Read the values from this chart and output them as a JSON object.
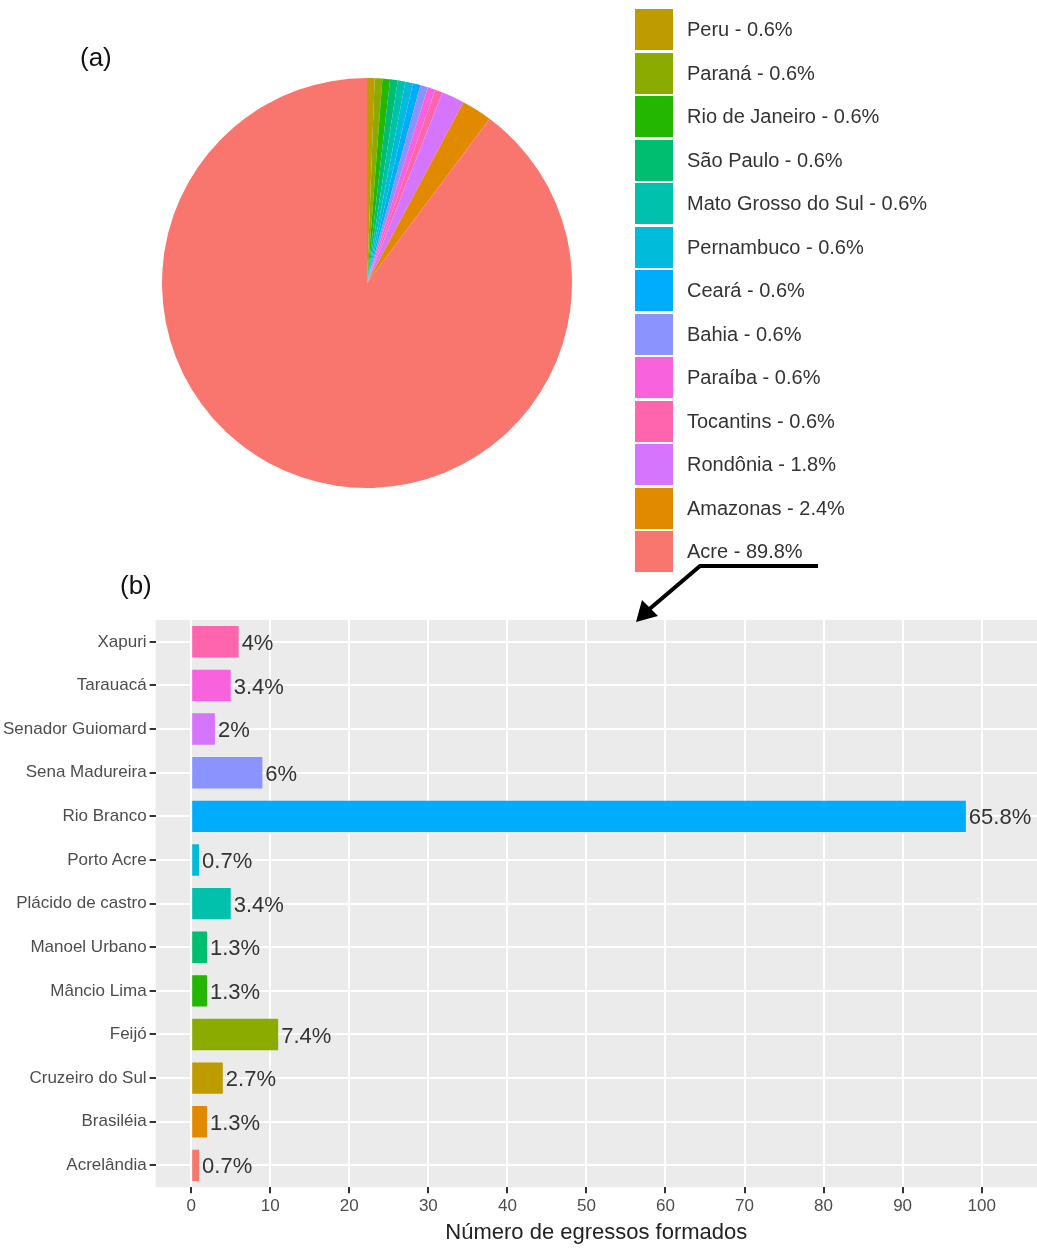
{
  "chart_data": [
    {
      "type": "pie",
      "title": "(a)",
      "legend": "right",
      "categories": [
        "Peru - 0.6%",
        "Paraná - 0.6%",
        "Rio de Janeiro - 0.6%",
        "São Paulo - 0.6%",
        "Mato Grosso do Sul - 0.6%",
        "Pernambuco - 0.6%",
        "Ceará - 0.6%",
        "Bahia - 0.6%",
        "Paraíba - 0.6%",
        "Tocantins - 0.6%",
        "Rondônia - 1.8%",
        "Amazonas - 2.4%",
        "Acre - 89.8%"
      ],
      "values": [
        0.6,
        0.6,
        0.6,
        0.6,
        0.6,
        0.6,
        0.6,
        0.6,
        0.6,
        0.6,
        1.8,
        2.4,
        89.8
      ],
      "colors": [
        "#be9c00",
        "#8cab00",
        "#24b700",
        "#00be70",
        "#00c1ab",
        "#00bbda",
        "#00acfc",
        "#8b93ff",
        "#f962dd",
        "#ff65ac",
        "#d575fe",
        "#e18a00",
        "#f8766d"
      ]
    },
    {
      "type": "bar",
      "title": "(b)",
      "orientation": "horizontal",
      "xlabel": "Número de egressos formados",
      "grid": true,
      "categories": [
        "Xapuri",
        "Tarauacá",
        "Senador Guiomard",
        "Sena Madureira",
        "Rio Branco",
        "Porto Acre",
        "Plácido de castro",
        "Manoel Urbano",
        "Mâncio Lima",
        "Feijó",
        "Cruzeiro do Sul",
        "Brasiléia",
        "Acrelândia"
      ],
      "values": [
        6,
        5,
        3,
        9,
        98,
        1,
        5,
        2,
        2,
        11,
        4,
        2,
        1
      ],
      "annotations": [
        {
          "text": "4%",
          "x": 6,
          "y": "Xapuri"
        },
        {
          "text": "3.4%",
          "x": 5,
          "y": "Tarauacá"
        },
        {
          "text": "2%",
          "x": 3,
          "y": "Senador Guiomard"
        },
        {
          "text": "6%",
          "x": 9,
          "y": "Sena Madureira"
        },
        {
          "text": "65.8%",
          "x": 98,
          "y": "Rio Branco"
        },
        {
          "text": "0.7%",
          "x": 1,
          "y": "Porto Acre"
        },
        {
          "text": "3.4%",
          "x": 5,
          "y": "Plácido de castro"
        },
        {
          "text": "1.3%",
          "x": 2,
          "y": "Manoel Urbano"
        },
        {
          "text": "1.3%",
          "x": 2,
          "y": "Mâncio Lima"
        },
        {
          "text": "7.4%",
          "x": 11,
          "y": "Feijó"
        },
        {
          "text": "2.7%",
          "x": 4,
          "y": "Cruzeiro do Sul"
        },
        {
          "text": "1.3%",
          "x": 2,
          "y": "Brasiléia"
        },
        {
          "text": "0.7%",
          "x": 1,
          "y": "Acrelândia"
        }
      ],
      "colors": [
        "#ff65ac",
        "#f962dd",
        "#d575fe",
        "#8b93ff",
        "#00acfc",
        "#00bbda",
        "#00c1ab",
        "#00be70",
        "#24b700",
        "#8cab00",
        "#be9c00",
        "#e18a00",
        "#f8766d"
      ],
      "xlim": [
        -4.5,
        107
      ],
      "xticks": [
        0,
        10,
        20,
        30,
        40,
        50,
        60,
        70,
        80,
        90,
        100
      ]
    }
  ]
}
